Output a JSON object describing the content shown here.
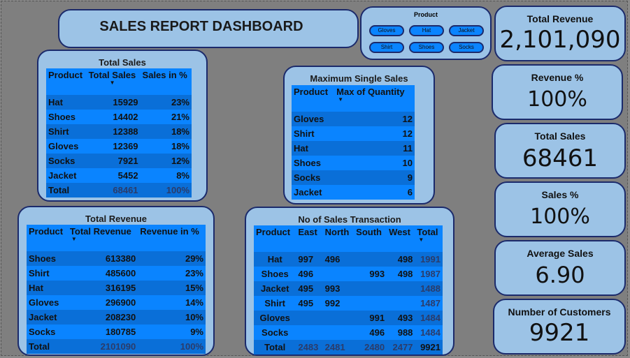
{
  "dashboard_title": "SALES REPORT DASHBOARD",
  "slicer": {
    "title": "Product",
    "options": [
      "Gloves",
      "Hat",
      "Jacket",
      "Shirt",
      "Shoes",
      "Socks"
    ]
  },
  "kpis": {
    "total_revenue": {
      "label": "Total Revenue",
      "value": "2,101,090"
    },
    "revenue_pct": {
      "label": "Revenue %",
      "value": "100%"
    },
    "total_sales": {
      "label": "Total Sales",
      "value": "68461"
    },
    "sales_pct": {
      "label": "Sales %",
      "value": "100%"
    },
    "average_sales": {
      "label": "Average Sales",
      "value": "6.90"
    },
    "customers": {
      "label": "Number of Customers",
      "value": "9921"
    }
  },
  "total_sales_table": {
    "title": "Total Sales",
    "headers": [
      "Product",
      "Total Sales",
      "Sales in %"
    ],
    "rows": [
      [
        "Hat",
        "15929",
        "23%"
      ],
      [
        "Shoes",
        "14402",
        "21%"
      ],
      [
        "Shirt",
        "12388",
        "18%"
      ],
      [
        "Gloves",
        "12369",
        "18%"
      ],
      [
        "Socks",
        "7921",
        "12%"
      ],
      [
        "Jacket",
        "5452",
        "8%"
      ]
    ],
    "total": [
      "Total",
      "68461",
      "100%"
    ]
  },
  "max_sales_table": {
    "title": "Maximum Single Sales",
    "headers": [
      "Product",
      "Max of Quantity"
    ],
    "rows": [
      [
        "Gloves",
        "12"
      ],
      [
        "Shirt",
        "12"
      ],
      [
        "Hat",
        "11"
      ],
      [
        "Shoes",
        "10"
      ],
      [
        "Socks",
        "9"
      ],
      [
        "Jacket",
        "6"
      ]
    ]
  },
  "total_revenue_table": {
    "title": "Total Revenue",
    "headers": [
      "Product",
      "Total Revenue",
      "Revenue in %"
    ],
    "rows": [
      [
        "Shoes",
        "613380",
        "29%"
      ],
      [
        "Shirt",
        "485600",
        "23%"
      ],
      [
        "Hat",
        "316195",
        "15%"
      ],
      [
        "Gloves",
        "296900",
        "14%"
      ],
      [
        "Jacket",
        "208230",
        "10%"
      ],
      [
        "Socks",
        "180785",
        "9%"
      ]
    ],
    "total": [
      "Total",
      "2101090",
      "100%"
    ]
  },
  "transactions_table": {
    "title": "No of Sales Transaction",
    "headers": [
      "Product",
      "East",
      "North",
      "South",
      "West",
      "Total"
    ],
    "rows": [
      [
        "Hat",
        "997",
        "496",
        "",
        "498",
        "1991"
      ],
      [
        "Shoes",
        "496",
        "",
        "993",
        "498",
        "1987"
      ],
      [
        "Jacket",
        "495",
        "993",
        "",
        "",
        "1488"
      ],
      [
        "Shirt",
        "495",
        "992",
        "",
        "",
        "1487"
      ],
      [
        "Gloves",
        "",
        "",
        "991",
        "493",
        "1484"
      ],
      [
        "Socks",
        "",
        "",
        "496",
        "988",
        "1484"
      ]
    ],
    "total": [
      "Total",
      "2483",
      "2481",
      "2480",
      "2477",
      "9921"
    ]
  }
}
